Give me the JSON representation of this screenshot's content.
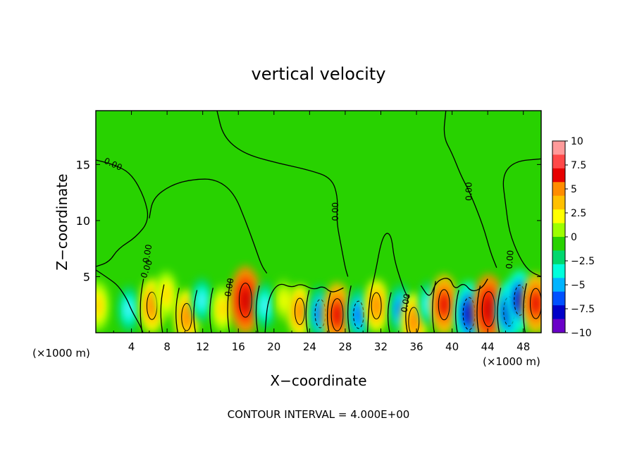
{
  "chart_data": {
    "type": "heatmap",
    "title": "vertical velocity",
    "xlabel": "X−coordinate",
    "ylabel": "Z−coordinate",
    "x_unit_left": "(×1000 m)",
    "x_unit_right": "(×1000 m)",
    "footer": "CONTOUR INTERVAL = 4.000E+00",
    "xlim": [
      0,
      50
    ],
    "ylim": [
      0,
      19.8
    ],
    "x_ticks": [
      4,
      8,
      12,
      16,
      20,
      24,
      28,
      32,
      36,
      40,
      44,
      48
    ],
    "y_ticks": [
      5,
      10,
      15
    ],
    "colorbar": {
      "ticks": [
        "10",
        "7.5",
        "5",
        "2.5",
        "0",
        "−2.5",
        "−5",
        "−7.5",
        "−10"
      ],
      "colors": [
        "#ff9a9a",
        "#ff4848",
        "#e60000",
        "#ff8c00",
        "#ffc000",
        "#ffff00",
        "#9cff00",
        "#28d200",
        "#00d86e",
        "#00ffdc",
        "#00b4ff",
        "#0050ff",
        "#0000c8",
        "#6a00c8"
      ]
    },
    "contour_labels": [
      "0.00",
      "0.00",
      "0.00",
      "0.00",
      "0.00",
      "0.00",
      "0.00",
      "0.00"
    ],
    "cells": [
      {
        "x": 0.2,
        "z": 2.4,
        "w": 3.5
      },
      {
        "x": 3.7,
        "z": 2.1,
        "w": -2.5
      },
      {
        "x": 6.3,
        "z": 2.4,
        "w": 4.5
      },
      {
        "x": 7.9,
        "z": 3.4,
        "w": 2.5
      },
      {
        "x": 10.2,
        "z": 1.4,
        "w": 4.5
      },
      {
        "x": 11.9,
        "z": 2.9,
        "w": -2.0
      },
      {
        "x": 14.2,
        "z": 2.1,
        "w": 2.5
      },
      {
        "x": 16.8,
        "z": 2.9,
        "w": 8.0
      },
      {
        "x": 19.0,
        "z": 2.4,
        "w": -2.5
      },
      {
        "x": 21.1,
        "z": 2.9,
        "w": 1.5
      },
      {
        "x": 22.9,
        "z": 1.9,
        "w": 4.0
      },
      {
        "x": 25.2,
        "z": 1.7,
        "w": -5.0
      },
      {
        "x": 27.1,
        "z": 1.6,
        "w": 7.0
      },
      {
        "x": 29.5,
        "z": 1.6,
        "w": -4.5
      },
      {
        "x": 31.5,
        "z": 2.4,
        "w": 4.0
      },
      {
        "x": 34.2,
        "z": 2.1,
        "w": -3.5
      },
      {
        "x": 35.7,
        "z": 1.0,
        "w": 5.0
      },
      {
        "x": 37.4,
        "z": 2.6,
        "w": -2.0
      },
      {
        "x": 39.1,
        "z": 2.5,
        "w": 6.0
      },
      {
        "x": 41.9,
        "z": 1.7,
        "w": -7.0
      },
      {
        "x": 44.1,
        "z": 2.1,
        "w": 8.5
      },
      {
        "x": 46.4,
        "z": 1.9,
        "w": -5.5
      },
      {
        "x": 47.6,
        "z": 2.9,
        "w": -6.0
      },
      {
        "x": 49.4,
        "z": 2.6,
        "w": 6.0
      }
    ]
  }
}
